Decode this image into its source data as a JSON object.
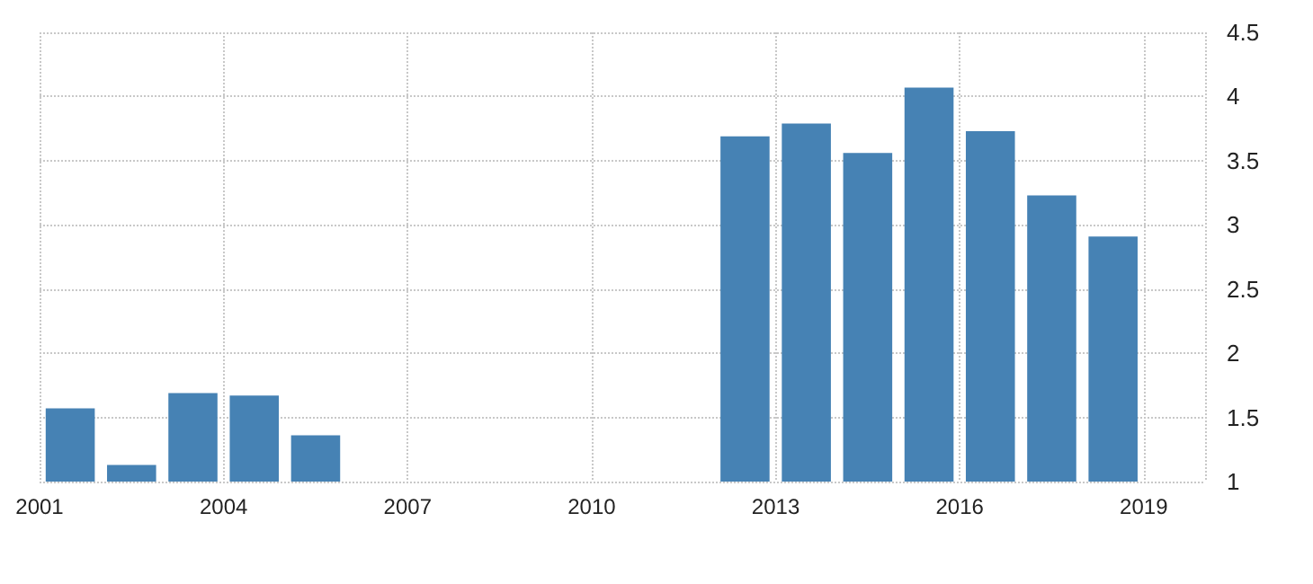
{
  "chart_data": {
    "type": "bar",
    "categories": [
      "2001",
      null,
      null,
      "2004",
      null,
      null,
      "2007",
      null,
      null,
      "2010",
      null,
      null,
      "2013",
      null,
      null,
      "2016",
      null,
      null,
      "2019"
    ],
    "values": [
      1.57,
      1.13,
      1.69,
      1.67,
      1.36,
      null,
      null,
      null,
      null,
      null,
      null,
      3.69,
      3.79,
      3.56,
      4.07,
      3.73,
      3.23,
      2.91,
      null
    ],
    "color": "#4682b4",
    "ylim": [
      1,
      4.5
    ],
    "yticks": [
      1,
      1.5,
      2,
      2.5,
      3,
      3.5,
      4,
      4.5
    ],
    "grid": true
  }
}
